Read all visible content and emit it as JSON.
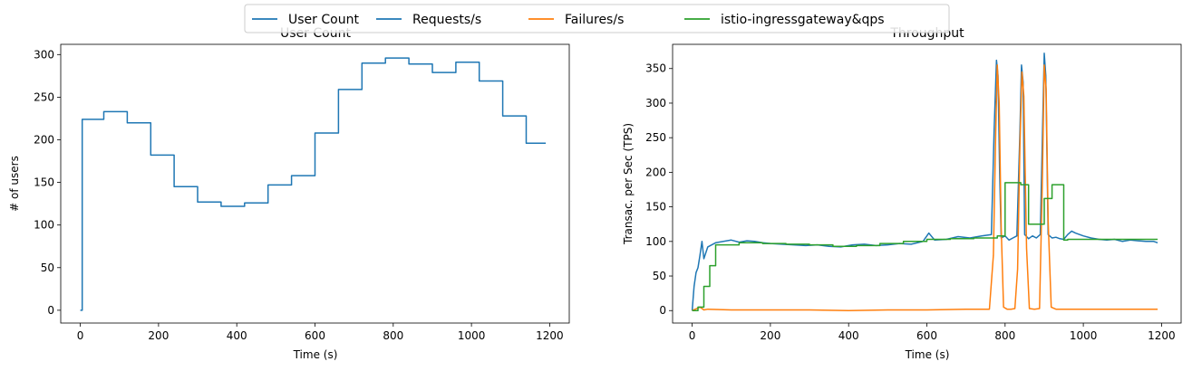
{
  "legend": {
    "entries": [
      {
        "name": "User Count",
        "color": "#1f77b4"
      },
      {
        "name": "Requests/s",
        "color": "#1f77b4"
      },
      {
        "name": "Failures/s",
        "color": "#ff7f0e"
      },
      {
        "name": "istio-ingressgateway&qps",
        "color": "#2ca02c"
      }
    ]
  },
  "chart_data": [
    {
      "type": "line",
      "title": "User Count",
      "xlabel": "Time (s)",
      "ylabel": "# of users",
      "xlim": [
        -50,
        1250
      ],
      "ylim": [
        -15,
        312
      ],
      "xticks": [
        0,
        200,
        400,
        600,
        800,
        1000,
        1200
      ],
      "yticks": [
        0,
        50,
        100,
        150,
        200,
        250,
        300
      ],
      "grid": false,
      "series": [
        {
          "name": "User Count",
          "color": "#1f77b4",
          "step": true,
          "x": [
            0,
            5,
            60,
            120,
            180,
            240,
            300,
            360,
            420,
            480,
            540,
            600,
            660,
            720,
            780,
            840,
            900,
            960,
            1020,
            1080,
            1140,
            1190
          ],
          "y": [
            0,
            224,
            233,
            220,
            182,
            145,
            127,
            122,
            126,
            147,
            158,
            208,
            259,
            290,
            296,
            289,
            279,
            291,
            269,
            228,
            196,
            196
          ]
        }
      ]
    },
    {
      "type": "line",
      "title": "Throughput",
      "xlabel": "Time (s)",
      "ylabel": "Transac. per Sec (TPS)",
      "xlim": [
        -50,
        1250
      ],
      "ylim": [
        -18,
        385
      ],
      "xticks": [
        0,
        200,
        400,
        600,
        800,
        1000,
        1200
      ],
      "yticks": [
        0,
        50,
        100,
        150,
        200,
        250,
        300,
        350
      ],
      "grid": false,
      "series": [
        {
          "name": "Requests/s",
          "color": "#1f77b4",
          "x": [
            0,
            5,
            10,
            15,
            20,
            25,
            30,
            40,
            50,
            60,
            80,
            100,
            120,
            140,
            160,
            180,
            200,
            230,
            260,
            290,
            320,
            350,
            380,
            410,
            440,
            470,
            500,
            530,
            560,
            590,
            605,
            620,
            650,
            680,
            710,
            740,
            765,
            772,
            778,
            782,
            786,
            790,
            800,
            810,
            820,
            830,
            838,
            842,
            846,
            850,
            860,
            870,
            880,
            890,
            896,
            900,
            904,
            910,
            920,
            930,
            940,
            950,
            960,
            970,
            980,
            1000,
            1020,
            1040,
            1060,
            1080,
            1100,
            1120,
            1140,
            1160,
            1180,
            1190
          ],
          "y": [
            0,
            35,
            55,
            62,
            80,
            100,
            75,
            92,
            95,
            98,
            100,
            102,
            99,
            101,
            100,
            98,
            97,
            96,
            95,
            94,
            95,
            93,
            92,
            95,
            96,
            94,
            95,
            97,
            96,
            100,
            112,
            102,
            103,
            107,
            105,
            108,
            110,
            260,
            362,
            340,
            200,
            105,
            108,
            102,
            105,
            108,
            260,
            355,
            330,
            110,
            104,
            108,
            105,
            110,
            265,
            372,
            340,
            110,
            105,
            106,
            104,
            103,
            110,
            115,
            112,
            108,
            105,
            103,
            102,
            103,
            100,
            102,
            101,
            100,
            100,
            98
          ]
        },
        {
          "name": "Failures/s",
          "color": "#ff7f0e",
          "x": [
            0,
            20,
            30,
            40,
            100,
            200,
            300,
            400,
            500,
            600,
            700,
            760,
            770,
            776,
            780,
            785,
            790,
            796,
            805,
            815,
            825,
            832,
            838,
            843,
            848,
            855,
            862,
            875,
            888,
            895,
            900,
            905,
            910,
            918,
            930,
            1000,
            1100,
            1190
          ],
          "y": [
            0,
            5,
            1,
            2,
            1,
            1,
            1,
            0,
            1,
            1,
            2,
            2,
            80,
            260,
            355,
            300,
            120,
            5,
            2,
            2,
            3,
            60,
            240,
            345,
            310,
            90,
            3,
            2,
            3,
            180,
            355,
            320,
            130,
            5,
            2,
            2,
            2,
            2
          ]
        },
        {
          "name": "istio-ingressgateway&qps",
          "color": "#2ca02c",
          "step": true,
          "x": [
            0,
            15,
            30,
            45,
            60,
            120,
            180,
            240,
            300,
            360,
            420,
            480,
            540,
            600,
            660,
            720,
            780,
            800,
            840,
            860,
            900,
            920,
            950,
            960,
            1190
          ],
          "y": [
            0,
            5,
            35,
            65,
            95,
            98,
            97,
            96,
            95,
            93,
            94,
            97,
            100,
            103,
            104,
            105,
            108,
            185,
            182,
            125,
            162,
            182,
            102,
            103,
            103
          ]
        }
      ]
    }
  ]
}
